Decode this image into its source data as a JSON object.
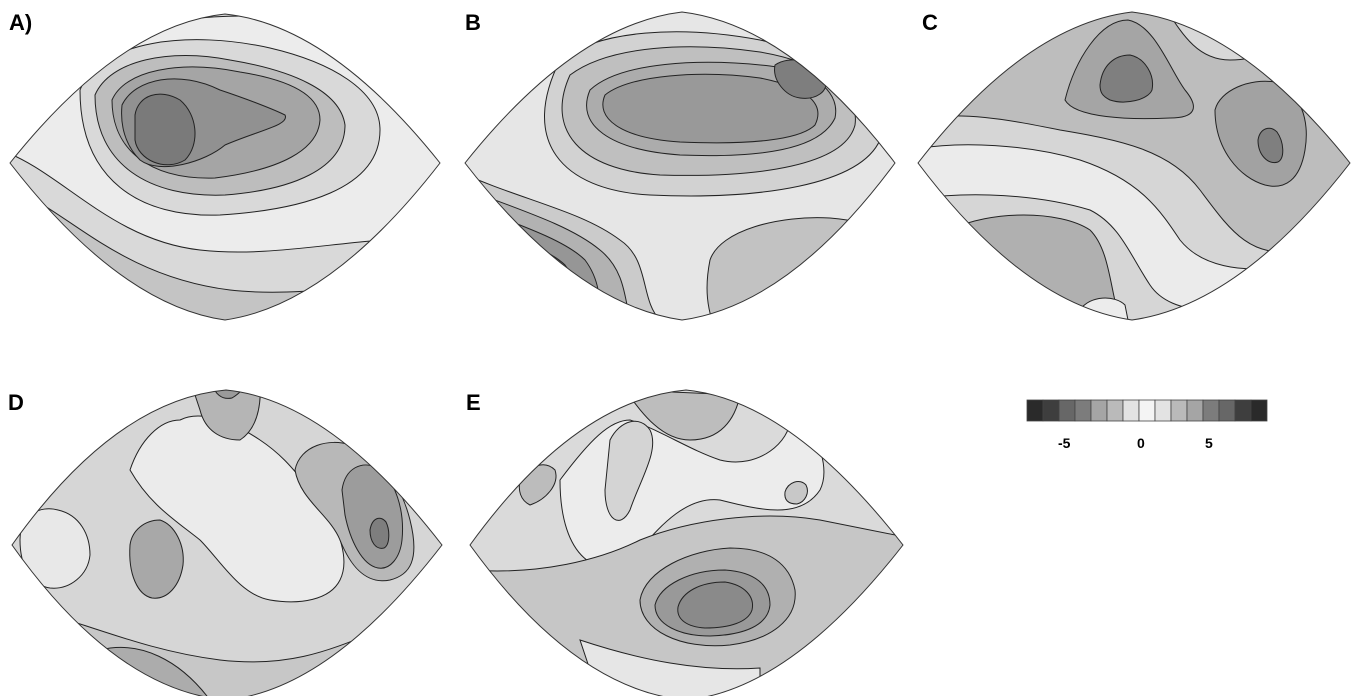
{
  "panels": [
    {
      "label": "A",
      "label_text": "A)"
    },
    {
      "label": "B"
    },
    {
      "label": "C"
    },
    {
      "label": "D"
    },
    {
      "label": "E"
    }
  ],
  "colorbar": {
    "ticks": [
      "-5",
      "0",
      "5"
    ],
    "levels": 15,
    "colors": [
      "#2a2a2a",
      "#3e3e3e",
      "#535353",
      "#676767",
      "#7c7c7c",
      "#909090",
      "#a5a5a5",
      "#bababa",
      "#cfcfcf",
      "#e3e3e3",
      "#f4f4f4",
      "#e3e3e3",
      "#cfcfcf",
      "#bababa",
      "#a5a5a5",
      "#909090",
      "#7c7c7c",
      "#676767",
      "#535353",
      "#3e3e3e",
      "#2a2a2a"
    ]
  },
  "palette": {
    "outline": "#333333",
    "contour_line": "#222222",
    "level_lightest": "#ececec",
    "level_light": "#d9d9d9",
    "level_mid_light": "#c4c4c4",
    "level_mid": "#adadad",
    "level_mid_dark": "#969696",
    "level_dark": "#7f7f7f",
    "level_darkest": "#686868"
  }
}
